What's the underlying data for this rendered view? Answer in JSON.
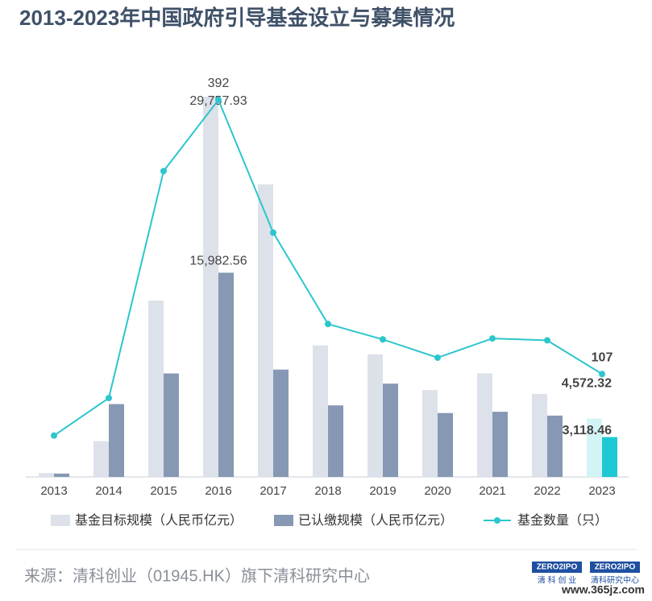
{
  "chart_data": {
    "type": "bar-line",
    "title": "2013-2023年中国政府引导基金设立与募集情况",
    "categories": [
      "2013",
      "2014",
      "2015",
      "2016",
      "2017",
      "2018",
      "2019",
      "2020",
      "2021",
      "2022",
      "2023"
    ],
    "series": [
      {
        "name": "基金目标规模（人民币亿元）",
        "type": "bar",
        "color": "#dde1ea",
        "highlight_color": "#d3f4f6",
        "values": [
          300,
          2800,
          13800,
          29757.93,
          22900,
          10300,
          9600,
          6800,
          8100,
          6500,
          4572.32
        ],
        "value_labels": [
          null,
          null,
          null,
          "29,757.93",
          null,
          null,
          null,
          null,
          null,
          null,
          "4,572.32"
        ]
      },
      {
        "name": "已认缴规模（人民币亿元）",
        "type": "bar",
        "color": "#8698b3",
        "highlight_color": "#1dc8d3",
        "values": [
          260,
          5700,
          8100,
          15982.56,
          8400,
          5600,
          7300,
          5000,
          5100,
          4800,
          3118.46
        ],
        "value_labels": [
          null,
          null,
          null,
          "15,982.56",
          null,
          null,
          null,
          null,
          null,
          null,
          "3,118.46"
        ]
      },
      {
        "name": "基金数量（只）",
        "type": "line",
        "color": "#2cc6cc",
        "values": [
          43,
          82,
          318,
          392,
          254,
          159,
          143,
          124,
          144,
          142,
          107
        ],
        "value_labels": [
          null,
          null,
          null,
          "392",
          null,
          null,
          null,
          null,
          null,
          null,
          "107"
        ]
      }
    ],
    "source": "来源：清科创业（01945.HK）旗下清科研究中心",
    "logos": [
      "ZERO2IPO",
      "清 科 创 业",
      "ZERO2IPO",
      "清科研究中心"
    ],
    "watermark": "www.365jz.com"
  }
}
